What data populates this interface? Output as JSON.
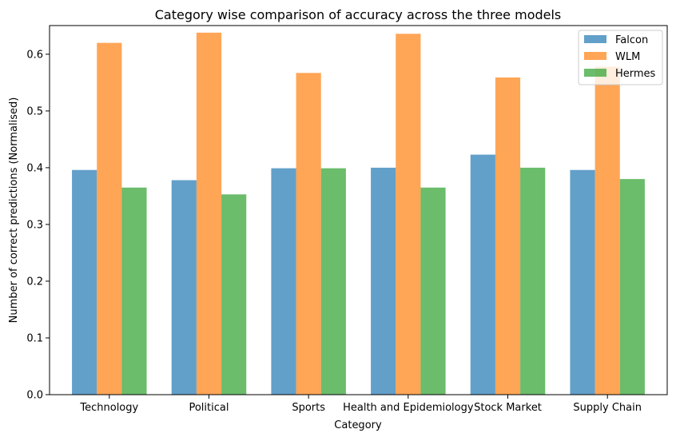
{
  "chart_data": {
    "type": "bar",
    "title": "Category wise comparison of accuracy across the three models",
    "xlabel": "Category",
    "ylabel": "Number of correct predictions (Normalised)",
    "categories": [
      "Technology",
      "Political",
      "Sports",
      "Health and Epidemiology",
      "Stock Market",
      "Supply Chain"
    ],
    "series": [
      {
        "name": "Falcon",
        "color": "#1f77b4",
        "values": [
          0.396,
          0.378,
          0.399,
          0.4,
          0.423,
          0.396
        ]
      },
      {
        "name": "WLM",
        "color": "#ff7f0e",
        "values": [
          0.62,
          0.638,
          0.567,
          0.636,
          0.559,
          0.578
        ]
      },
      {
        "name": "Hermes",
        "color": "#2ca02c",
        "values": [
          0.365,
          0.353,
          0.399,
          0.365,
          0.4,
          0.38
        ]
      }
    ],
    "ylim": [
      0,
      0.6505
    ],
    "yticks": [
      "0.0",
      "0.1",
      "0.2",
      "0.3",
      "0.4",
      "0.5",
      "0.6"
    ],
    "bar_opacity": 0.7,
    "legend_position": "upper right",
    "grid": false
  }
}
